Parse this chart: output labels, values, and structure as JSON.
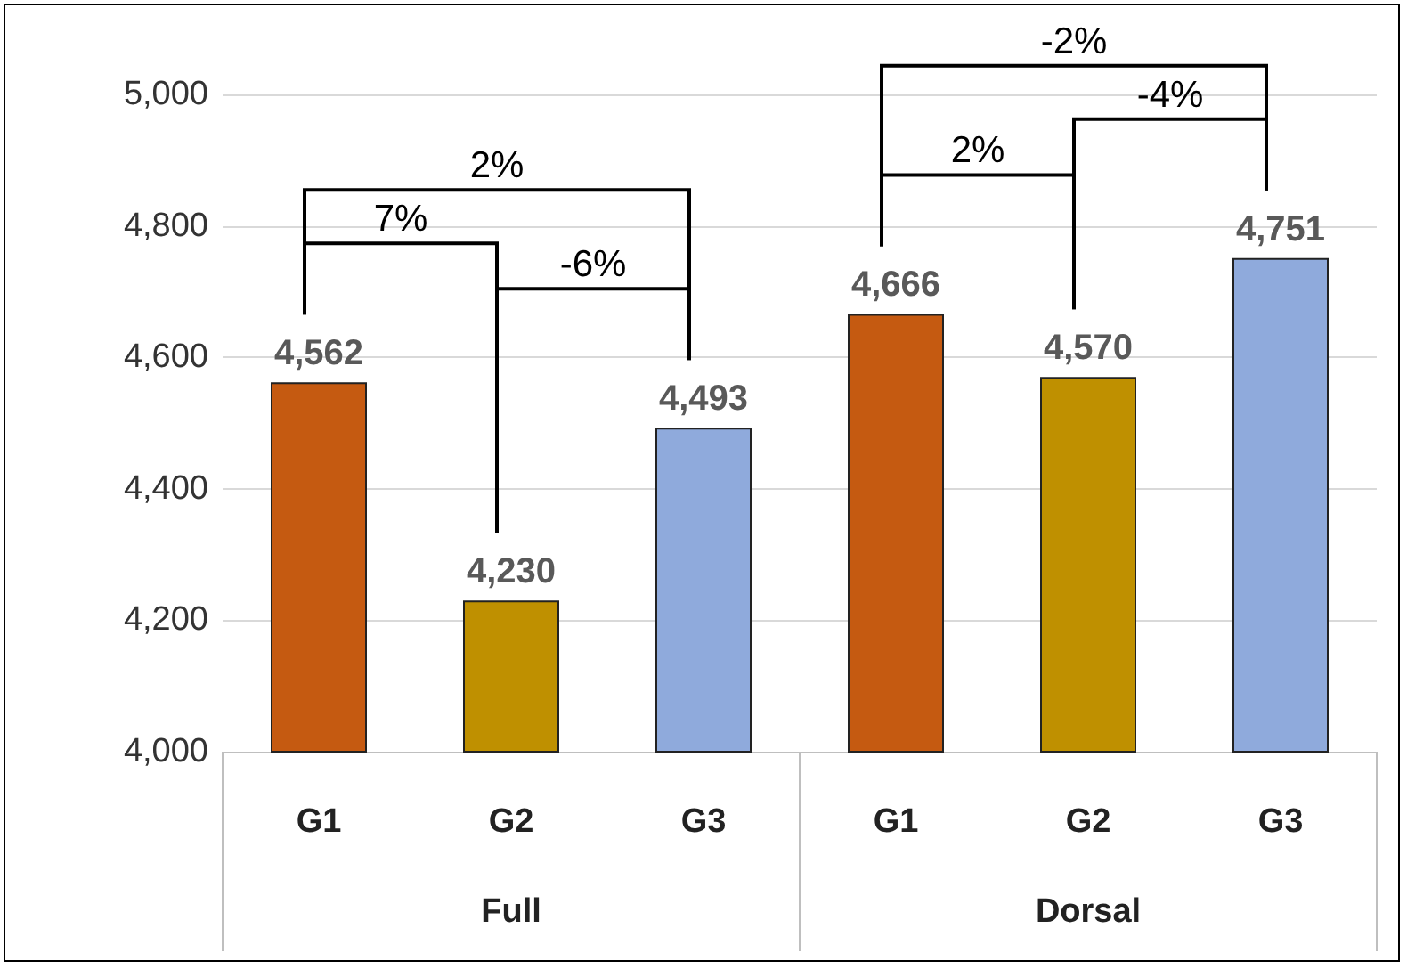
{
  "chart_data": {
    "type": "bar",
    "categories": [
      "G1",
      "G2",
      "G3",
      "G1",
      "G2",
      "G3"
    ],
    "values": [
      4562,
      4230,
      4493,
      4666,
      4570,
      4751
    ],
    "colors": [
      "#c55a11",
      "#bf9000",
      "#8faadc",
      "#c55a11",
      "#bf9000",
      "#8faadc"
    ],
    "value_labels": [
      "4,562",
      "4,230",
      "4,493",
      "4,666",
      "4,570",
      "4,751"
    ],
    "ylim": [
      4000,
      5000
    ],
    "yticks": [
      {
        "value": 4000,
        "label": "4,000"
      },
      {
        "value": 4200,
        "label": "4,200"
      },
      {
        "value": 4400,
        "label": "4,400"
      },
      {
        "value": 4600,
        "label": "4,600"
      },
      {
        "value": 4800,
        "label": "4,800"
      },
      {
        "value": 5000,
        "label": "5,000"
      }
    ],
    "grid": "y",
    "annotations": [
      "2%",
      "7%",
      "-6%",
      "-2%",
      "2%",
      "-4%",
      "Full",
      "Dorsal"
    ]
  }
}
